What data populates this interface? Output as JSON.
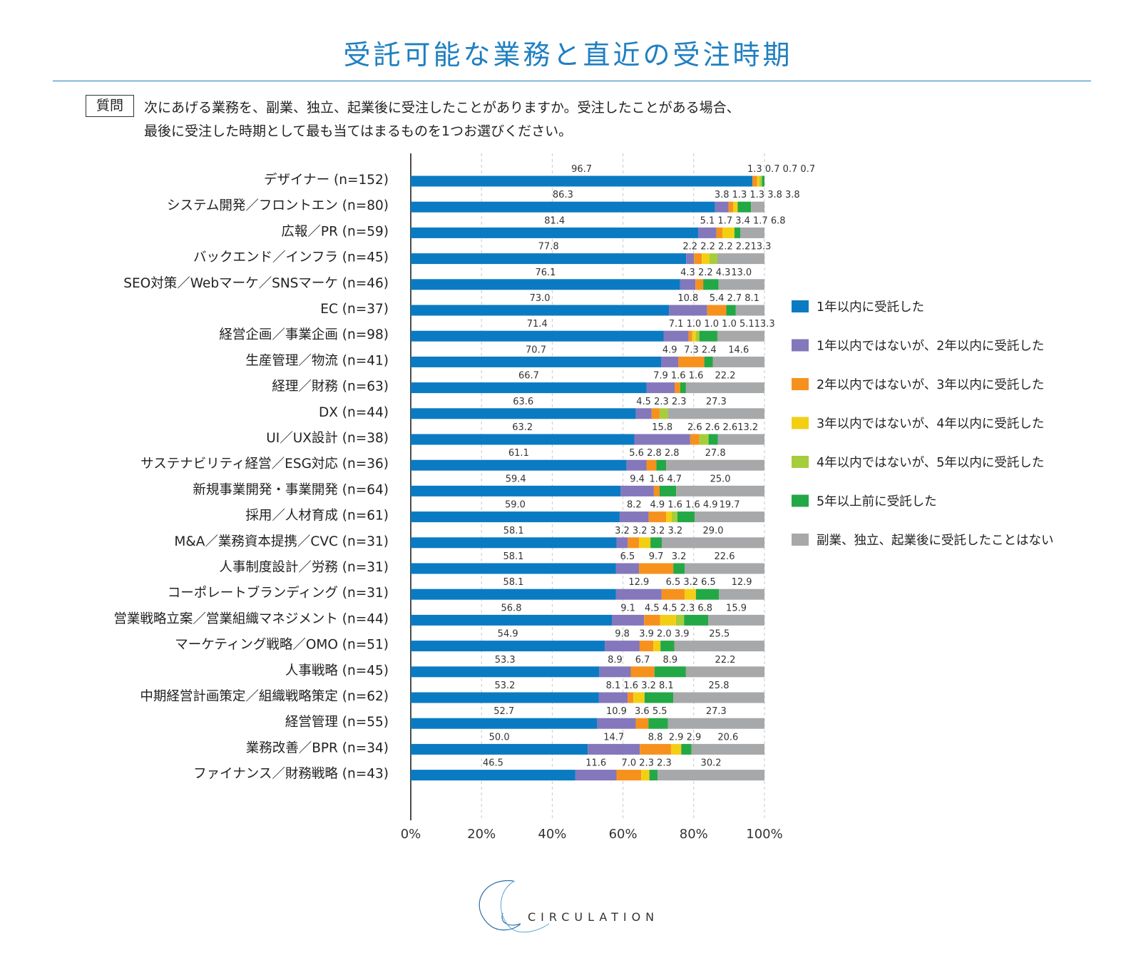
{
  "title": "受託可能な業務と直近の受注時期",
  "question": {
    "badge": "質問",
    "line1": "次にあげる業務を、副業、独立、起業後に受注したことがありますか。受注したことがある場合、",
    "line2": "最後に受注した時期として最も当てはまるものを1つお選びください。"
  },
  "brand": "CIRCULATION",
  "colors": [
    "#0a7bc2",
    "#8477bb",
    "#f6911e",
    "#f3cf14",
    "#a6cd3a",
    "#23a846",
    "#a7a8aa"
  ],
  "chart_data": {
    "type": "bar",
    "orientation": "horizontal-stacked-100",
    "xlim": [
      0,
      100
    ],
    "xticks": [
      "0%",
      "20%",
      "40%",
      "60%",
      "80%",
      "100%"
    ],
    "series_names": [
      "1年以内に受託した",
      "1年以内ではないが、2年以内に受託した",
      "2年以内ではないが、3年以内に受託した",
      "3年以内ではないが、4年以内に受託した",
      "4年以内ではないが、5年以内に受託した",
      "5年以上前に受託した",
      "副業、独立、起業後に受託したことはない"
    ],
    "categories": [
      "デザイナー (n=152)",
      "システム開発／フロントエン (n=80)",
      "広報／PR (n=59)",
      "バックエンド／インフラ (n=45)",
      "SEO対策／Webマーケ／SNSマーケ (n=46)",
      "EC (n=37)",
      "経営企画／事業企画 (n=98)",
      "生産管理／物流 (n=41)",
      "経理／財務 (n=63)",
      "DX (n=44)",
      "UI／UX設計 (n=38)",
      "サステナビリティ経営／ESG対応 (n=36)",
      "新規事業開発・事業開発 (n=64)",
      "採用／人材育成 (n=61)",
      "M&A／業務資本提携／CVC (n=31)",
      "人事制度設計／労務 (n=31)",
      "コーポレートブランディング (n=31)",
      "営業戦略立案／営業組織マネジメント (n=44)",
      "マーケティング戦略／OMO (n=51)",
      "人事戦略 (n=45)",
      "中期経営計画策定／組織戦略策定 (n=62)",
      "経営管理 (n=55)",
      "業務改善／BPR (n=34)",
      "ファイナンス／財務戦略 (n=43)"
    ],
    "values": [
      [
        96.7,
        0,
        1.3,
        0.7,
        0.7,
        0.7,
        0
      ],
      [
        86.3,
        3.8,
        1.3,
        1.3,
        0,
        3.8,
        3.8
      ],
      [
        81.4,
        5.1,
        1.7,
        3.4,
        0,
        1.7,
        6.8
      ],
      [
        77.8,
        2.2,
        2.2,
        2.2,
        2.2,
        0,
        13.3
      ],
      [
        76.1,
        4.3,
        2.2,
        0,
        0,
        4.3,
        13.0
      ],
      [
        73.0,
        10.8,
        5.4,
        0,
        0,
        2.7,
        8.1
      ],
      [
        71.4,
        7.1,
        1.0,
        1.0,
        1.0,
        5.1,
        13.3
      ],
      [
        70.7,
        4.9,
        7.3,
        0,
        0,
        2.4,
        14.6
      ],
      [
        66.7,
        7.9,
        1.6,
        0,
        0,
        1.6,
        22.2
      ],
      [
        63.6,
        4.5,
        2.3,
        0,
        2.3,
        0,
        27.3
      ],
      [
        63.2,
        15.8,
        2.6,
        0,
        2.6,
        2.6,
        13.2
      ],
      [
        61.1,
        5.6,
        2.8,
        0,
        0,
        2.8,
        27.8
      ],
      [
        59.4,
        9.4,
        1.6,
        0,
        0,
        4.7,
        25.0
      ],
      [
        59.0,
        8.2,
        4.9,
        1.6,
        1.6,
        4.9,
        19.7
      ],
      [
        58.1,
        3.2,
        3.2,
        3.2,
        0,
        3.2,
        29.0
      ],
      [
        58.1,
        6.5,
        9.7,
        0,
        0,
        3.2,
        22.6
      ],
      [
        58.1,
        12.9,
        6.5,
        3.2,
        0,
        6.5,
        12.9
      ],
      [
        56.8,
        9.1,
        4.5,
        4.5,
        2.3,
        6.8,
        15.9
      ],
      [
        54.9,
        9.8,
        3.9,
        2.0,
        0,
        3.9,
        25.5
      ],
      [
        53.3,
        8.9,
        6.7,
        0,
        0,
        8.9,
        22.2
      ],
      [
        53.2,
        8.1,
        1.6,
        3.2,
        0,
        8.1,
        25.8
      ],
      [
        52.7,
        10.9,
        3.6,
        0,
        0,
        5.5,
        27.3
      ],
      [
        50.0,
        14.7,
        8.8,
        2.9,
        0,
        2.9,
        20.6
      ],
      [
        46.5,
        11.6,
        7.0,
        2.3,
        0,
        2.3,
        30.2
      ]
    ],
    "value_labels": [
      [
        "96.7",
        "",
        "1.3",
        "0.7",
        "0.7",
        "0.7",
        ""
      ],
      [
        "86.3",
        "3.8",
        "1.3",
        "1.3",
        "",
        "3.8",
        "3.8"
      ],
      [
        "81.4",
        "5.1",
        "1.7",
        "3.4",
        "",
        "1.7",
        "6.8"
      ],
      [
        "77.8",
        "2.2",
        "2.2",
        "2.2",
        "2.2",
        "",
        "13.3"
      ],
      [
        "76.1",
        "4.3",
        "2.2",
        "",
        "",
        "4.3",
        "13.0"
      ],
      [
        "73.0",
        "10.8",
        "5.4",
        "",
        "",
        "2.7",
        "8.1"
      ],
      [
        "71.4",
        "7.1",
        "1.0",
        "1.0",
        "1.0",
        "5.1",
        "13.3"
      ],
      [
        "70.7",
        "4.9",
        "7.3",
        "",
        "",
        "2.4",
        "14.6"
      ],
      [
        "66.7",
        "7.9",
        "1.6",
        "",
        "",
        "1.6",
        "22.2"
      ],
      [
        "63.6",
        "4.5",
        "2.3",
        "",
        "2.3",
        "",
        "27.3"
      ],
      [
        "63.2",
        "15.8",
        "2.6",
        "",
        "2.6",
        "2.6",
        "13.2"
      ],
      [
        "61.1",
        "5.6",
        "2.8",
        "",
        "",
        "2.8",
        "27.8"
      ],
      [
        "59.4",
        "9.4",
        "1.6",
        "",
        "",
        "4.7",
        "25.0"
      ],
      [
        "59.0",
        "8.2",
        "4.9",
        "1.6",
        "1.6",
        "4.9",
        "19.7"
      ],
      [
        "58.1",
        "3.2",
        "3.2",
        "3.2",
        "",
        "3.2",
        "29.0"
      ],
      [
        "58.1",
        "6.5",
        "9.7",
        "",
        "",
        "3.2",
        "22.6"
      ],
      [
        "58.1",
        "12.9",
        "6.5",
        "3.2",
        "",
        "6.5",
        "12.9"
      ],
      [
        "56.8",
        "9.1",
        "4.5",
        "4.5",
        "2.3",
        "6.8",
        "15.9"
      ],
      [
        "54.9",
        "9.8",
        "3.9",
        "2.0",
        "",
        "3.9",
        "25.5"
      ],
      [
        "53.3",
        "8.9",
        "6.7",
        "",
        "",
        "8.9",
        "22.2"
      ],
      [
        "53.2",
        "8.1",
        "1.6",
        "3.2",
        "",
        "8.1",
        "25.8"
      ],
      [
        "52.7",
        "10.9",
        "3.6",
        "",
        "",
        "5.5",
        "27.3"
      ],
      [
        "50.0",
        "14.7",
        "8.8",
        "2.9",
        "",
        "2.9",
        "20.6"
      ],
      [
        "46.5",
        "11.6",
        "7.0",
        "2.3",
        "",
        "2.3",
        "30.2"
      ]
    ]
  }
}
